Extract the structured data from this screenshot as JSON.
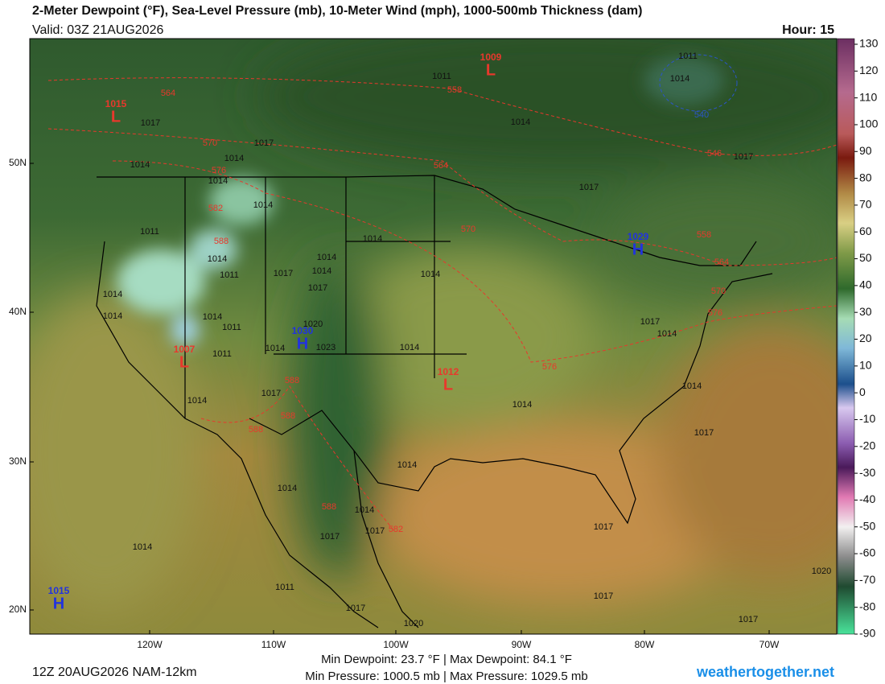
{
  "header": {
    "title": "2-Meter Dewpoint (°F), Sea-Level Pressure (mb), 10-Meter Wind (mph), 1000-500mb Thickness (dam)",
    "valid": "Valid: 03Z 21AUG2026",
    "hour": "Hour: 15"
  },
  "colorbar": {
    "ticks": [
      130,
      120,
      110,
      100,
      90,
      80,
      70,
      60,
      50,
      40,
      30,
      20,
      10,
      0,
      -10,
      -20,
      -30,
      -40,
      -50,
      -60,
      -70,
      -80,
      -90
    ]
  },
  "latitudes": [
    "50N",
    "40N",
    "30N",
    "20N"
  ],
  "longitudes": [
    "120W",
    "110W",
    "100W",
    "90W",
    "80W",
    "70W"
  ],
  "pressure_centers": [
    {
      "letter": "L",
      "value": 1015
    },
    {
      "letter": "L",
      "value": 1009
    },
    {
      "letter": "H",
      "value": 1029
    },
    {
      "letter": "H",
      "value": 1030
    },
    {
      "letter": "L",
      "value": 1007
    },
    {
      "letter": "L",
      "value": 1012
    },
    {
      "letter": "H",
      "value": 1015
    }
  ],
  "isobar_labels": [
    1011,
    1014,
    1011,
    1017,
    1014,
    1014,
    1017,
    1014,
    1014,
    1014,
    1011,
    1011,
    1017,
    1014,
    1014,
    1017,
    1014,
    1014,
    1014,
    1011,
    1020,
    1023,
    1014,
    1011,
    1017,
    1014,
    1014,
    1014,
    1014,
    1014,
    1017,
    1017,
    1014,
    1017,
    1014,
    1014,
    1014,
    1017,
    1017,
    1014,
    1011,
    1017,
    1017,
    1020,
    1017,
    1014,
    1014,
    1017,
    1020,
    1017
  ],
  "thickness_labels": [
    564,
    558,
    570,
    576,
    564,
    570,
    582,
    588,
    558,
    564,
    570,
    576,
    576,
    588,
    588,
    588,
    588,
    582,
    546,
    540
  ],
  "footer": {
    "run": "12Z 20AUG2026 NAM-12km",
    "dewpoint_range": "Min Dewpoint: 23.7 °F | Max Dewpoint: 84.1 °F",
    "pressure_range": "Min Pressure: 1000.5 mb | Max Pressure: 1029.5 mb",
    "site": "weathertogether.net"
  }
}
